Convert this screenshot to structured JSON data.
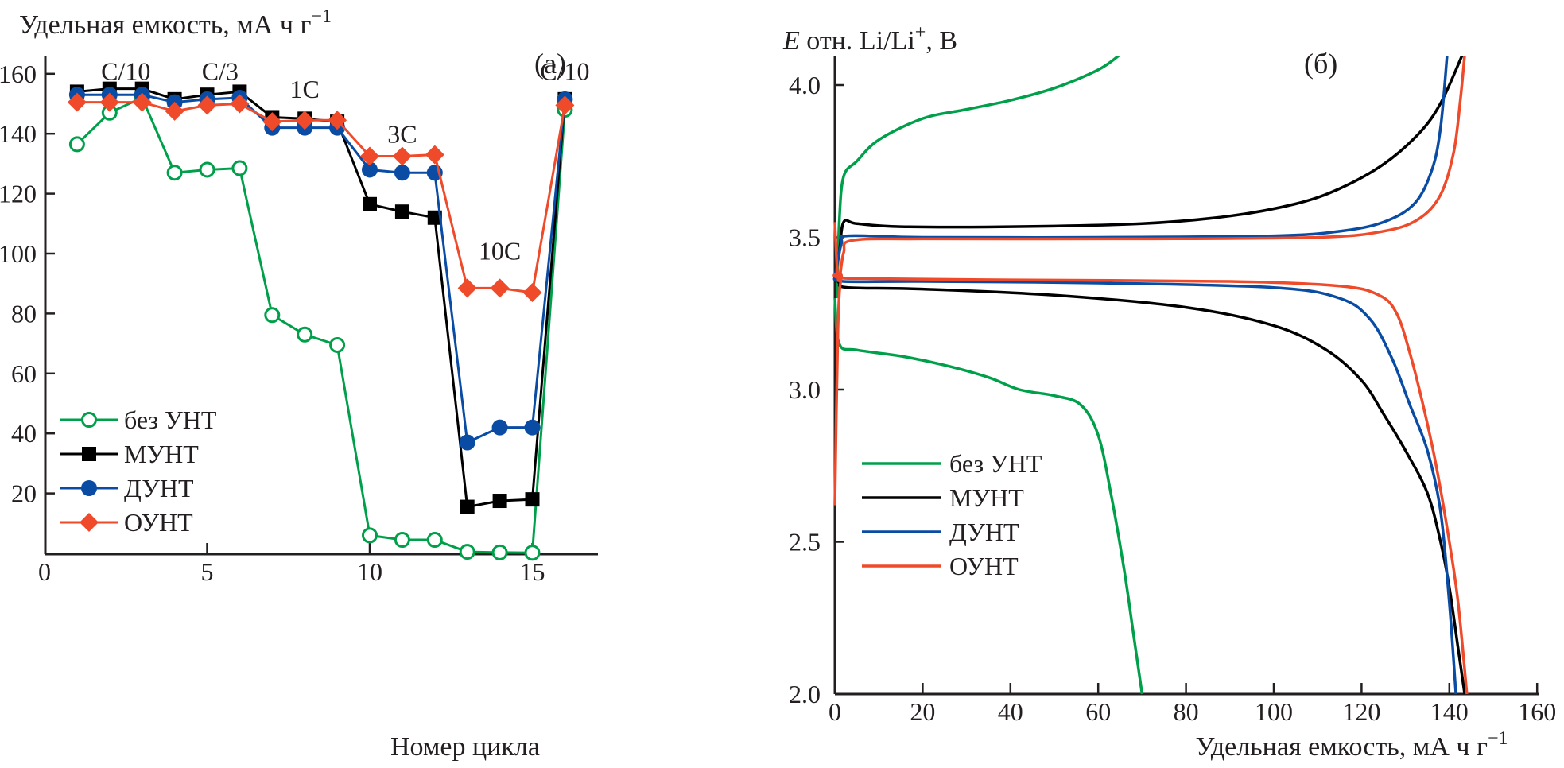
{
  "chart_data": [
    {
      "panel_label": "(а)",
      "type": "line",
      "ylabel": "Удельная емкость, мА ч г",
      "ylabel_superscript": "−1",
      "xlabel": "Номер цикла",
      "xlim": [
        0,
        17
      ],
      "ylim": [
        0,
        170
      ],
      "xticks": [
        0,
        5,
        10,
        15
      ],
      "yticks": [
        20,
        40,
        60,
        80,
        100,
        120,
        140,
        160
      ],
      "grid": false,
      "legend_position": "bottom-left",
      "annotations": [
        {
          "text": "C/10",
          "x": 2.5,
          "y": 158
        },
        {
          "text": "C/3",
          "x": 5.4,
          "y": 158
        },
        {
          "text": "1C",
          "x": 8,
          "y": 152
        },
        {
          "text": "3C",
          "x": 11,
          "y": 137
        },
        {
          "text": "10C",
          "x": 14,
          "y": 98
        },
        {
          "text": "C/10",
          "x": 16,
          "y": 158
        }
      ],
      "x": [
        1,
        2,
        3,
        4,
        5,
        6,
        7,
        8,
        9,
        10,
        11,
        12,
        13,
        14,
        15,
        16
      ],
      "series": [
        {
          "name": "без УНТ",
          "color": "#00a04b",
          "marker": "open-circle",
          "values": [
            136.5,
            147,
            152,
            127,
            128,
            128.5,
            79.5,
            73,
            69.5,
            6,
            4.5,
            4.5,
            0.5,
            0.3,
            0.2,
            148
          ]
        },
        {
          "name": "МУНТ",
          "color": "#000000",
          "marker": "square",
          "values": [
            154,
            155,
            155,
            151.5,
            153,
            154,
            145.5,
            145,
            144,
            116.5,
            114,
            112,
            15.5,
            17.5,
            18,
            151.5
          ]
        },
        {
          "name": "ДУНТ",
          "color": "#0a4ca3",
          "marker": "circle",
          "values": [
            153,
            153,
            153,
            150.5,
            151.5,
            152,
            142,
            142,
            142,
            128,
            127,
            127,
            37,
            42,
            42,
            151.5
          ]
        },
        {
          "name": "ОУНТ",
          "color": "#ef4a2a",
          "marker": "diamond",
          "values": [
            150.5,
            150.5,
            150.5,
            147.5,
            149.5,
            150,
            144,
            144.5,
            144.5,
            132.5,
            132.5,
            133,
            88.5,
            88.5,
            87,
            149.5
          ]
        }
      ]
    },
    {
      "panel_label": "(б)",
      "type": "line",
      "ylabel_italic": "E",
      "ylabel": " отн. Li/Li",
      "ylabel_superscript": "+",
      "ylabel_suffix": ", В",
      "xlabel": "Удельная емкость, мА ч г",
      "xlabel_superscript": "−1",
      "xlim": [
        0,
        160
      ],
      "ylim": [
        2.0,
        4.1
      ],
      "xticks": [
        0,
        20,
        40,
        60,
        80,
        100,
        120,
        140,
        160
      ],
      "yticks": [
        2.0,
        2.5,
        3.0,
        3.5,
        4.0
      ],
      "ytick_labels": [
        "2.0",
        "2.5",
        "3.0",
        "3.5",
        "4.0"
      ],
      "grid": false,
      "legend_position": "bottom-left",
      "series": [
        {
          "name": "без УНТ",
          "color": "#00a04b",
          "charge": [
            [
              0.5,
              3.3
            ],
            [
              1,
              3.55
            ],
            [
              2,
              3.7
            ],
            [
              5,
              3.75
            ],
            [
              10,
              3.82
            ],
            [
              20,
              3.89
            ],
            [
              30,
              3.92
            ],
            [
              40,
              3.95
            ],
            [
              50,
              3.99
            ],
            [
              60,
              4.05
            ],
            [
              65,
              4.1
            ]
          ],
          "discharge": [
            [
              0,
              3.3
            ],
            [
              1,
              3.15
            ],
            [
              5,
              3.13
            ],
            [
              15,
              3.11
            ],
            [
              25,
              3.08
            ],
            [
              35,
              3.04
            ],
            [
              42,
              3.0
            ],
            [
              50,
              2.98
            ],
            [
              56,
              2.95
            ],
            [
              60,
              2.85
            ],
            [
              63,
              2.65
            ],
            [
              66,
              2.4
            ],
            [
              68,
              2.2
            ],
            [
              70,
              2.0
            ]
          ]
        },
        {
          "name": "МУНТ",
          "color": "#000000",
          "charge": [
            [
              0,
              3.37
            ],
            [
              1,
              3.45
            ],
            [
              2,
              3.55
            ],
            [
              5,
              3.545
            ],
            [
              15,
              3.535
            ],
            [
              40,
              3.535
            ],
            [
              70,
              3.545
            ],
            [
              90,
              3.57
            ],
            [
              105,
              3.61
            ],
            [
              115,
              3.66
            ],
            [
              125,
              3.74
            ],
            [
              133,
              3.84
            ],
            [
              138,
              3.94
            ],
            [
              143,
              4.1
            ]
          ],
          "discharge": [
            [
              0,
              3.37
            ],
            [
              1,
              3.35
            ],
            [
              3,
              3.335
            ],
            [
              20,
              3.33
            ],
            [
              50,
              3.31
            ],
            [
              80,
              3.27
            ],
            [
              100,
              3.21
            ],
            [
              112,
              3.13
            ],
            [
              120,
              3.03
            ],
            [
              125,
              2.92
            ],
            [
              130,
              2.8
            ],
            [
              135,
              2.66
            ],
            [
              138,
              2.5
            ],
            [
              140,
              2.35
            ],
            [
              142,
              2.15
            ],
            [
              143.5,
              2.0
            ]
          ]
        },
        {
          "name": "ДУНТ",
          "color": "#0a4ca3",
          "charge": [
            [
              0,
              3.37
            ],
            [
              1.5,
              3.48
            ],
            [
              3,
              3.505
            ],
            [
              20,
              3.5
            ],
            [
              60,
              3.5
            ],
            [
              100,
              3.505
            ],
            [
              115,
              3.52
            ],
            [
              125,
              3.55
            ],
            [
              132,
              3.61
            ],
            [
              136,
              3.72
            ],
            [
              138,
              3.86
            ],
            [
              139.5,
              4.1
            ]
          ],
          "discharge": [
            [
              0,
              3.37
            ],
            [
              2,
              3.355
            ],
            [
              20,
              3.355
            ],
            [
              60,
              3.35
            ],
            [
              100,
              3.335
            ],
            [
              115,
              3.3
            ],
            [
              122,
              3.23
            ],
            [
              127,
              3.1
            ],
            [
              131,
              2.95
            ],
            [
              135,
              2.8
            ],
            [
              138,
              2.6
            ],
            [
              140,
              2.3
            ],
            [
              141.5,
              2.0
            ]
          ]
        },
        {
          "name": "ОУНТ",
          "color": "#ef4a2a",
          "charge": [
            [
              0,
              3.55
            ],
            [
              0.5,
              3.4
            ],
            [
              1,
              3.36
            ],
            [
              2,
              3.45
            ],
            [
              4,
              3.49
            ],
            [
              20,
              3.495
            ],
            [
              70,
              3.495
            ],
            [
              110,
              3.5
            ],
            [
              125,
              3.52
            ],
            [
              133,
              3.56
            ],
            [
              138,
              3.64
            ],
            [
              141,
              3.78
            ],
            [
              142.5,
              3.95
            ],
            [
              143.5,
              4.1
            ]
          ],
          "discharge": [
            [
              0,
              2.62
            ],
            [
              0.7,
              3.2
            ],
            [
              1.5,
              3.37
            ],
            [
              3,
              3.365
            ],
            [
              40,
              3.36
            ],
            [
              90,
              3.355
            ],
            [
              115,
              3.34
            ],
            [
              124,
              3.31
            ],
            [
              128,
              3.25
            ],
            [
              131,
              3.12
            ],
            [
              134,
              2.95
            ],
            [
              137,
              2.75
            ],
            [
              140,
              2.5
            ],
            [
              142,
              2.3
            ],
            [
              144,
              2.0
            ]
          ]
        }
      ]
    }
  ]
}
